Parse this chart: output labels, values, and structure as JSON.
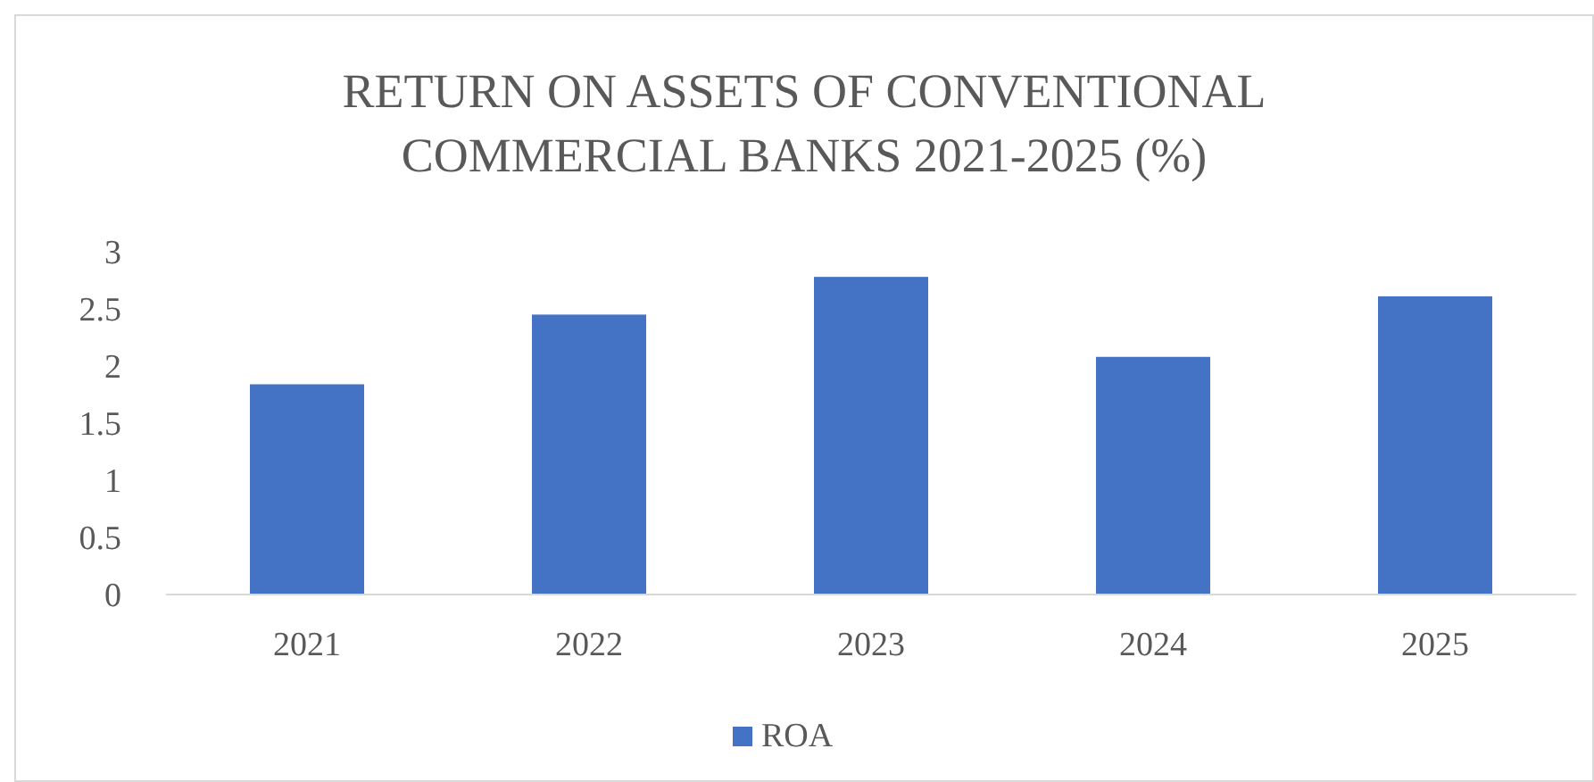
{
  "chart_data": {
    "type": "bar",
    "title": "RETURN ON ASSETS OF CONVENTIONAL COMMERCIAL BANKS 2021-2025 (%)",
    "categories": [
      "2021",
      "2022",
      "2023",
      "2024",
      "2025"
    ],
    "series": [
      {
        "name": "ROA",
        "color": "#4472c4",
        "values": [
          1.84,
          2.45,
          2.78,
          2.08,
          2.61
        ]
      }
    ],
    "ylim": [
      0,
      3
    ],
    "yticks": [
      0,
      {
        "value": 0.5,
        "label": "0.5"
      },
      1,
      {
        "value": 1.5,
        "label": "1.5"
      },
      2,
      {
        "value": 2.5,
        "label": "2.5"
      },
      3
    ],
    "grid": false,
    "legend": "bottom"
  }
}
